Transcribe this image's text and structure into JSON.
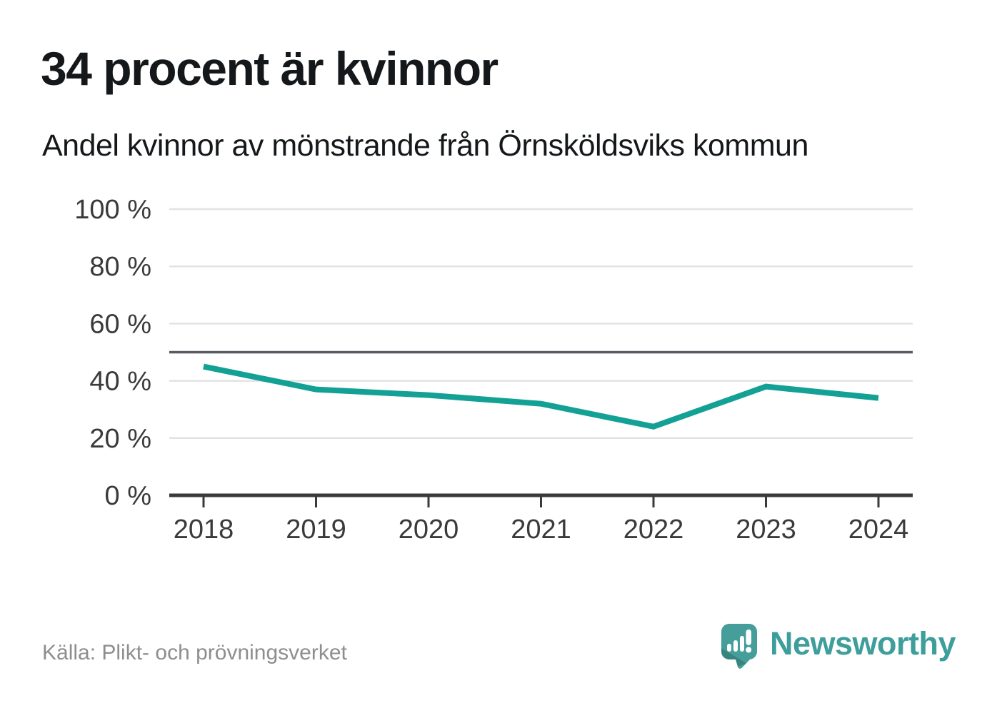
{
  "page": {
    "title": "34 procent är kvinnor",
    "subtitle": "Andel kvinnor av mönstrande från Örnsköldsviks kommun"
  },
  "footer": {
    "source": "Källa: Plikt- och prövningsverket",
    "brand_name": "Newsworthy"
  },
  "colors": {
    "line": "#12a194",
    "brand_teal": "#459e9a",
    "brand_text": "#3d9e9b",
    "grid": "#e2e2e4",
    "reference_line": "#595a62",
    "axis": "#3a3a3a",
    "tick_text": "#3a3a3a",
    "title_text": "#15181a",
    "muted_text": "#8e8e8e"
  },
  "chart_data": {
    "type": "line",
    "title": "34 procent är kvinnor",
    "subtitle": "Andel kvinnor av mönstrande från Örnsköldsviks kommun",
    "categories": [
      "2018",
      "2019",
      "2020",
      "2021",
      "2022",
      "2023",
      "2024"
    ],
    "series": [
      {
        "name": "Andel kvinnor av mönstrande",
        "values": [
          45,
          37,
          35,
          32,
          24,
          38,
          34
        ],
        "color": "#12a194"
      }
    ],
    "unit": "%",
    "ylim": [
      0,
      100
    ],
    "yticks": [
      0,
      20,
      40,
      60,
      80,
      100
    ],
    "ytick_labels": [
      "0 %",
      "20 %",
      "40 %",
      "60 %",
      "80 %",
      "100 %"
    ],
    "reference_line": 50,
    "grid": "horizontal",
    "legend": "none",
    "source": "Källa: Plikt- och prövningsverket"
  }
}
